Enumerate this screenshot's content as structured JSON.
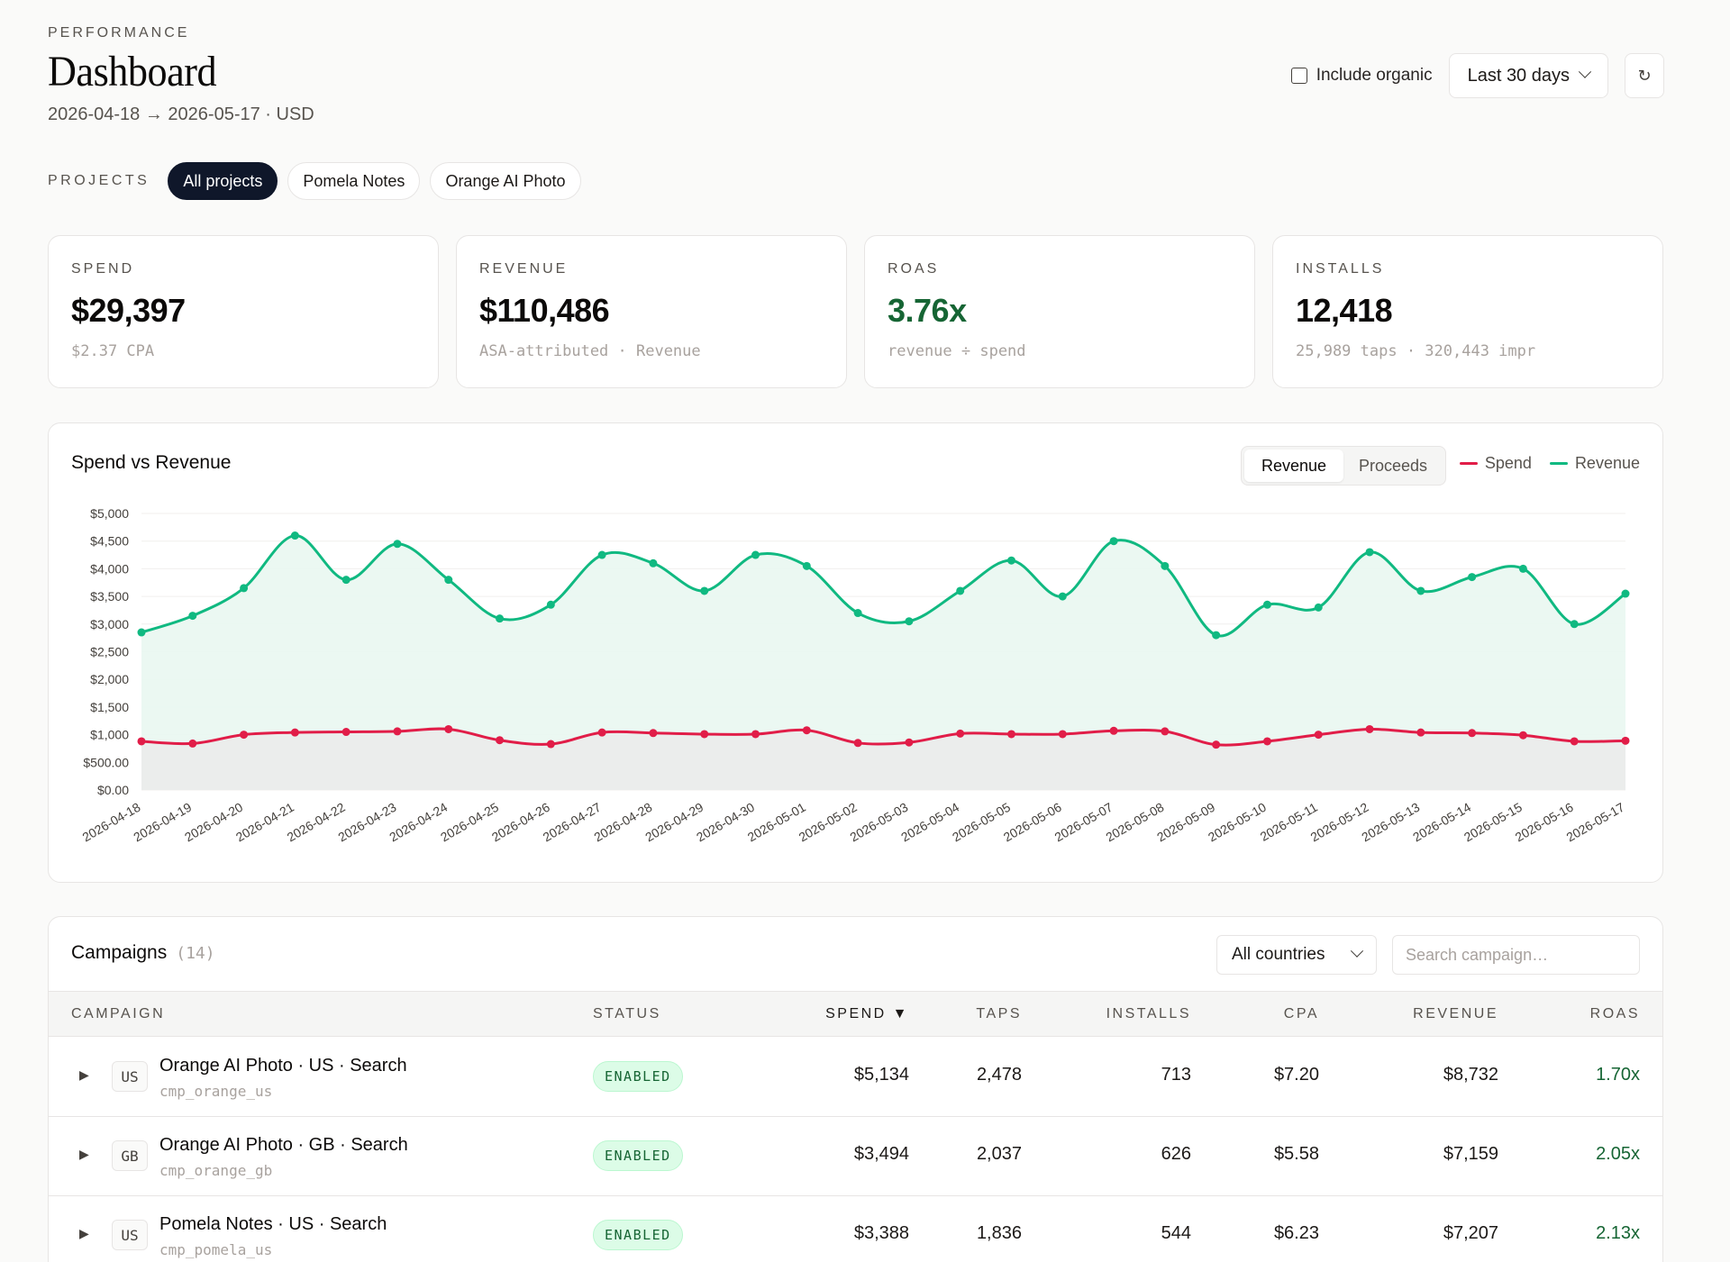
{
  "header": {
    "eyebrow": "PERFORMANCE",
    "title": "Dashboard",
    "date_range": "2026-04-18 → 2026-05-17 · USD",
    "include_organic_label": "Include organic",
    "period_label": "Last 30 days",
    "refresh_icon": "refresh-icon"
  },
  "projects": {
    "label": "PROJECTS",
    "items": [
      "All projects",
      "Pomela Notes",
      "Orange AI Photo"
    ],
    "active": "All projects"
  },
  "kpis": [
    {
      "label": "SPEND",
      "value": "$29,397",
      "sub": "$2.37 CPA"
    },
    {
      "label": "REVENUE",
      "value": "$110,486",
      "sub": "ASA-attributed · Revenue"
    },
    {
      "label": "ROAS",
      "value": "3.76x",
      "sub": "revenue ÷ spend"
    },
    {
      "label": "INSTALLS",
      "value": "12,418",
      "sub": "25,989 taps · 320,443 impr"
    }
  ],
  "chart": {
    "title": "Spend vs Revenue",
    "toggle": [
      "Revenue",
      "Proceeds"
    ],
    "toggle_active": "Revenue",
    "legend": [
      {
        "name": "Spend",
        "color": "#e11d48"
      },
      {
        "name": "Revenue",
        "color": "#10b981"
      }
    ]
  },
  "chart_data": {
    "type": "area",
    "x": [
      "2026-04-18",
      "2026-04-19",
      "2026-04-20",
      "2026-04-21",
      "2026-04-22",
      "2026-04-23",
      "2026-04-24",
      "2026-04-25",
      "2026-04-26",
      "2026-04-27",
      "2026-04-28",
      "2026-04-29",
      "2026-04-30",
      "2026-05-01",
      "2026-05-02",
      "2026-05-03",
      "2026-05-04",
      "2026-05-05",
      "2026-05-06",
      "2026-05-07",
      "2026-05-08",
      "2026-05-09",
      "2026-05-10",
      "2026-05-11",
      "2026-05-12",
      "2026-05-13",
      "2026-05-14",
      "2026-05-15",
      "2026-05-16",
      "2026-05-17"
    ],
    "series": [
      {
        "name": "Revenue",
        "color": "#10b981",
        "values": [
          2850,
          3150,
          3650,
          4600,
          3800,
          4450,
          3800,
          3100,
          3350,
          4250,
          4100,
          3600,
          4250,
          4050,
          3200,
          3050,
          3600,
          4150,
          3500,
          4500,
          4050,
          2800,
          3350,
          3300,
          4300,
          3600,
          3850,
          4000,
          3000,
          3550
        ]
      },
      {
        "name": "Spend",
        "color": "#e11d48",
        "values": [
          880,
          840,
          1000,
          1040,
          1050,
          1060,
          1100,
          900,
          830,
          1040,
          1030,
          1010,
          1010,
          1080,
          850,
          860,
          1020,
          1010,
          1010,
          1070,
          1060,
          820,
          880,
          1000,
          1100,
          1040,
          1030,
          990,
          880,
          890
        ]
      }
    ],
    "ylim": [
      0,
      5000
    ],
    "yticks": [
      "$0.00",
      "$500.00",
      "$1,000",
      "$1,500",
      "$2,000",
      "$2,500",
      "$3,000",
      "$3,500",
      "$4,000",
      "$4,500",
      "$5,000"
    ],
    "grid": true
  },
  "campaigns": {
    "title": "Campaigns",
    "count": "(14)",
    "country_filter": "All countries",
    "search_placeholder": "Search campaign…",
    "columns": [
      "CAMPAIGN",
      "STATUS",
      "SPEND ▼",
      "TAPS",
      "INSTALLS",
      "CPA",
      "REVENUE",
      "ROAS"
    ],
    "rows": [
      {
        "cc": "US",
        "name": "Orange AI Photo · US · Search",
        "id": "cmp_orange_us",
        "status": "ENABLED",
        "spend": "$5,134",
        "taps": "2,478",
        "installs": "713",
        "cpa": "$7.20",
        "revenue": "$8,732",
        "roas": "1.70x"
      },
      {
        "cc": "GB",
        "name": "Orange AI Photo · GB · Search",
        "id": "cmp_orange_gb",
        "status": "ENABLED",
        "spend": "$3,494",
        "taps": "2,037",
        "installs": "626",
        "cpa": "$5.58",
        "revenue": "$7,159",
        "roas": "2.05x"
      },
      {
        "cc": "US",
        "name": "Pomela Notes · US · Search",
        "id": "cmp_pomela_us",
        "status": "ENABLED",
        "spend": "$3,388",
        "taps": "1,836",
        "installs": "544",
        "cpa": "$6.23",
        "revenue": "$7,207",
        "roas": "2.13x"
      }
    ]
  }
}
